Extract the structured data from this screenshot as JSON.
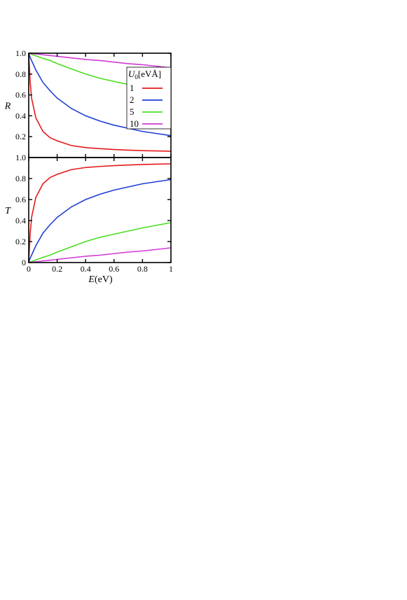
{
  "chart_data": [
    {
      "type": "line",
      "panel": "top",
      "ylabel": "R",
      "xlabel": "",
      "xlim": [
        0,
        1
      ],
      "ylim": [
        0,
        1
      ],
      "xticks": [
        0,
        0.2,
        0.4,
        0.6,
        0.8,
        1
      ],
      "yticks": [
        0.2,
        0.4,
        0.6,
        0.8,
        1.0
      ],
      "ytick_labels": [
        "0.2",
        "0.4",
        "0.6",
        "0.8",
        "1.0"
      ],
      "legend": {
        "placement": "right",
        "title_main": "U",
        "title_sub": "0",
        "title_rest": "[eVÅ]",
        "entries": [
          "1",
          "2",
          "5",
          "10"
        ]
      },
      "x": [
        0,
        0.01,
        0.02,
        0.05,
        0.1,
        0.15,
        0.2,
        0.3,
        0.4,
        0.5,
        0.6,
        0.7,
        0.8,
        0.9,
        1.0
      ],
      "series": [
        {
          "name": "1",
          "color": "#e41a1c",
          "values": [
            1.0,
            0.73,
            0.57,
            0.38,
            0.25,
            0.19,
            0.16,
            0.115,
            0.095,
            0.085,
            0.077,
            0.071,
            0.066,
            0.063,
            0.06
          ]
        },
        {
          "name": "2",
          "color": "#1f3fd6",
          "values": [
            1.0,
            0.96,
            0.93,
            0.84,
            0.72,
            0.64,
            0.57,
            0.47,
            0.4,
            0.35,
            0.31,
            0.28,
            0.25,
            0.23,
            0.21
          ]
        },
        {
          "name": "5",
          "color": "#4cde22",
          "values": [
            1.0,
            0.995,
            0.99,
            0.975,
            0.95,
            0.93,
            0.9,
            0.85,
            0.8,
            0.76,
            0.73,
            0.7,
            0.67,
            0.645,
            0.62
          ]
        },
        {
          "name": "10",
          "color": "#d23ad6",
          "values": [
            1.0,
            0.999,
            0.997,
            0.993,
            0.985,
            0.978,
            0.97,
            0.955,
            0.94,
            0.93,
            0.915,
            0.9,
            0.89,
            0.875,
            0.86
          ]
        }
      ]
    },
    {
      "type": "line",
      "panel": "bottom",
      "ylabel": "T",
      "xlabel_main": "E",
      "xlabel_rest": "(eV)",
      "xlim": [
        0,
        1
      ],
      "ylim": [
        0,
        1
      ],
      "xticks": [
        0,
        0.2,
        0.4,
        0.6,
        0.8,
        1
      ],
      "xtick_labels": [
        "0",
        "0.2",
        "0.4",
        "0.6",
        "0.8",
        "1"
      ],
      "yticks": [
        0,
        0.2,
        0.4,
        0.6,
        0.8,
        1.0
      ],
      "ytick_labels": [
        "0",
        "0.2",
        "0.4",
        "0.6",
        "0.8",
        "1.0"
      ],
      "x": [
        0,
        0.01,
        0.02,
        0.05,
        0.1,
        0.15,
        0.2,
        0.3,
        0.4,
        0.5,
        0.6,
        0.7,
        0.8,
        0.9,
        1.0
      ],
      "series": [
        {
          "name": "1",
          "color": "#e41a1c",
          "values": [
            0.0,
            0.27,
            0.43,
            0.62,
            0.75,
            0.81,
            0.84,
            0.885,
            0.905,
            0.915,
            0.923,
            0.929,
            0.934,
            0.937,
            0.94
          ]
        },
        {
          "name": "2",
          "color": "#1f3fd6",
          "values": [
            0.0,
            0.04,
            0.07,
            0.16,
            0.28,
            0.36,
            0.43,
            0.53,
            0.6,
            0.65,
            0.69,
            0.72,
            0.75,
            0.77,
            0.79
          ]
        },
        {
          "name": "5",
          "color": "#4cde22",
          "values": [
            0.0,
            0.005,
            0.01,
            0.025,
            0.05,
            0.07,
            0.1,
            0.15,
            0.2,
            0.24,
            0.27,
            0.3,
            0.33,
            0.355,
            0.38
          ]
        },
        {
          "name": "10",
          "color": "#d23ad6",
          "values": [
            0.0,
            0.001,
            0.003,
            0.007,
            0.015,
            0.022,
            0.03,
            0.045,
            0.06,
            0.07,
            0.085,
            0.1,
            0.11,
            0.125,
            0.14
          ]
        }
      ]
    }
  ]
}
